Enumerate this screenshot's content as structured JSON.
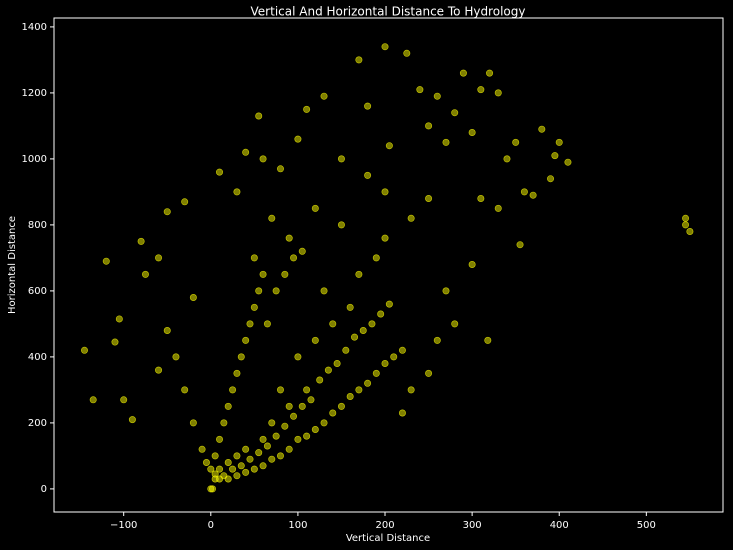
{
  "chart_data": {
    "type": "scatter",
    "title": "Vertical And Horizontal Distance To Hydrology",
    "x_label": "Vertical Distance",
    "y_label": "Horizontal Distance",
    "xlim": [
      -180,
      588
    ],
    "ylim": [
      -70,
      1427
    ],
    "xticks": [
      {
        "value": -100,
        "label": "−100"
      },
      0,
      100,
      200,
      300,
      400,
      500
    ],
    "yticks": [
      0,
      200,
      400,
      600,
      800,
      1000,
      1200,
      1400
    ],
    "grid": false,
    "series": [
      {
        "color": "#ffff00",
        "x": [
          -145,
          -135,
          -120,
          -110,
          -105,
          -100,
          -90,
          -80,
          -75,
          -60,
          -50,
          -30,
          -20,
          10,
          30,
          40,
          55,
          60,
          80,
          100,
          110,
          130,
          150,
          170,
          180,
          200,
          205,
          225,
          240,
          250,
          260,
          270,
          280,
          290,
          300,
          310,
          320,
          330,
          340,
          350,
          355,
          360,
          370,
          380,
          390,
          400,
          410,
          395,
          318,
          300,
          270,
          280,
          260,
          250,
          230,
          220,
          545,
          550,
          545,
          310,
          330,
          200,
          180,
          150,
          120,
          90,
          70,
          50,
          0,
          2,
          5,
          10,
          20,
          30,
          40,
          50,
          60,
          70,
          80,
          90,
          100,
          110,
          120,
          130,
          140,
          150,
          160,
          170,
          180,
          190,
          200,
          210,
          220,
          0,
          5,
          10,
          15,
          20,
          25,
          30,
          35,
          40,
          45,
          50,
          55,
          60,
          -10,
          -20,
          -30,
          -40,
          -50,
          -60,
          -5,
          80,
          100,
          120,
          140,
          160,
          110,
          90,
          70,
          60,
          40,
          30,
          20,
          10,
          5,
          15,
          25,
          35,
          45,
          55,
          65,
          75,
          85,
          95,
          105,
          115,
          125,
          135,
          145,
          155,
          165,
          175,
          185,
          195,
          205,
          75,
          85,
          95,
          105,
          65,
          130,
          170,
          190,
          200,
          230,
          250
        ],
        "y": [
          420,
          270,
          690,
          445,
          515,
          270,
          210,
          750,
          650,
          700,
          840,
          870,
          580,
          960,
          900,
          1020,
          1130,
          1000,
          970,
          1060,
          1150,
          1190,
          1000,
          1300,
          1160,
          1340,
          1040,
          1320,
          1210,
          1100,
          1190,
          1050,
          1140,
          1260,
          1080,
          1210,
          1260,
          1200,
          1000,
          1050,
          740,
          900,
          890,
          1090,
          940,
          1050,
          990,
          1010,
          450,
          680,
          600,
          500,
          450,
          350,
          300,
          230,
          820,
          780,
          800,
          880,
          850,
          900,
          950,
          800,
          850,
          760,
          820,
          700,
          0,
          0,
          30,
          30,
          30,
          40,
          50,
          60,
          70,
          90,
          100,
          120,
          150,
          160,
          180,
          200,
          230,
          250,
          280,
          300,
          320,
          350,
          380,
          400,
          420,
          60,
          100,
          150,
          200,
          250,
          300,
          350,
          400,
          450,
          500,
          550,
          600,
          650,
          120,
          200,
          300,
          400,
          480,
          360,
          80,
          300,
          400,
          450,
          500,
          550,
          300,
          250,
          200,
          150,
          120,
          100,
          80,
          60,
          45,
          40,
          60,
          70,
          90,
          110,
          130,
          160,
          190,
          220,
          250,
          270,
          330,
          360,
          380,
          420,
          460,
          480,
          500,
          530,
          560,
          600,
          650,
          700,
          720,
          500,
          600,
          650,
          700,
          760,
          820,
          880
        ]
      }
    ]
  }
}
